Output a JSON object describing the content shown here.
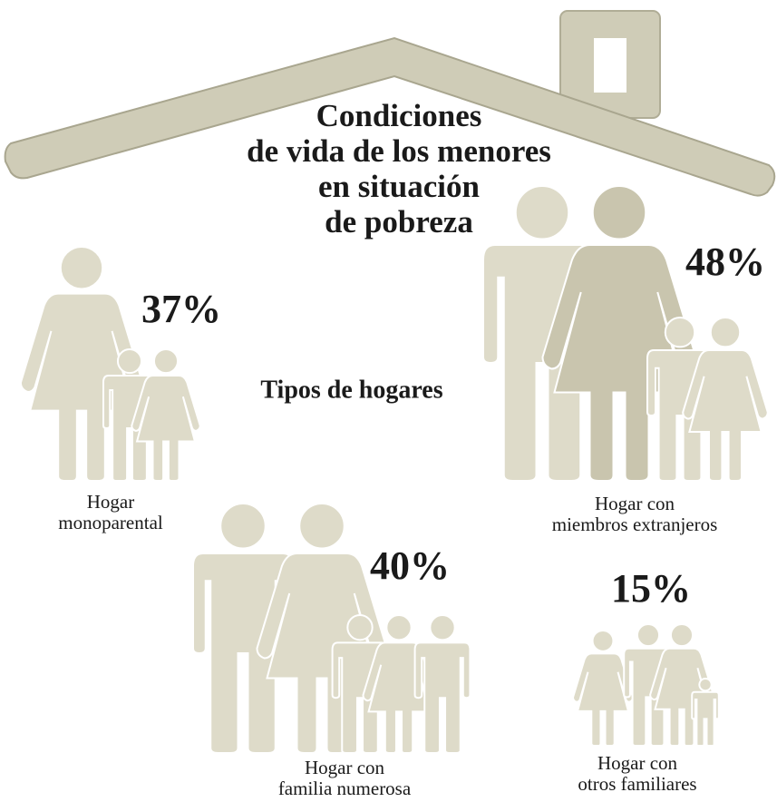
{
  "title_lines": [
    "Condiciones",
    "de vida de los menores",
    "en situación",
    "de pobreza"
  ],
  "subtitle": "Tipos de hogares",
  "households": [
    {
      "label_lines": [
        "Hogar",
        "monoparental"
      ],
      "percent": "37%"
    },
    {
      "label_lines": [
        "Hogar con",
        "miembros extranjeros"
      ],
      "percent": "48%"
    },
    {
      "label_lines": [
        "Hogar con",
        "familia numerosa"
      ],
      "percent": "40%"
    },
    {
      "label_lines": [
        "Hogar con",
        "otros familiares"
      ],
      "percent": "15%"
    }
  ]
}
